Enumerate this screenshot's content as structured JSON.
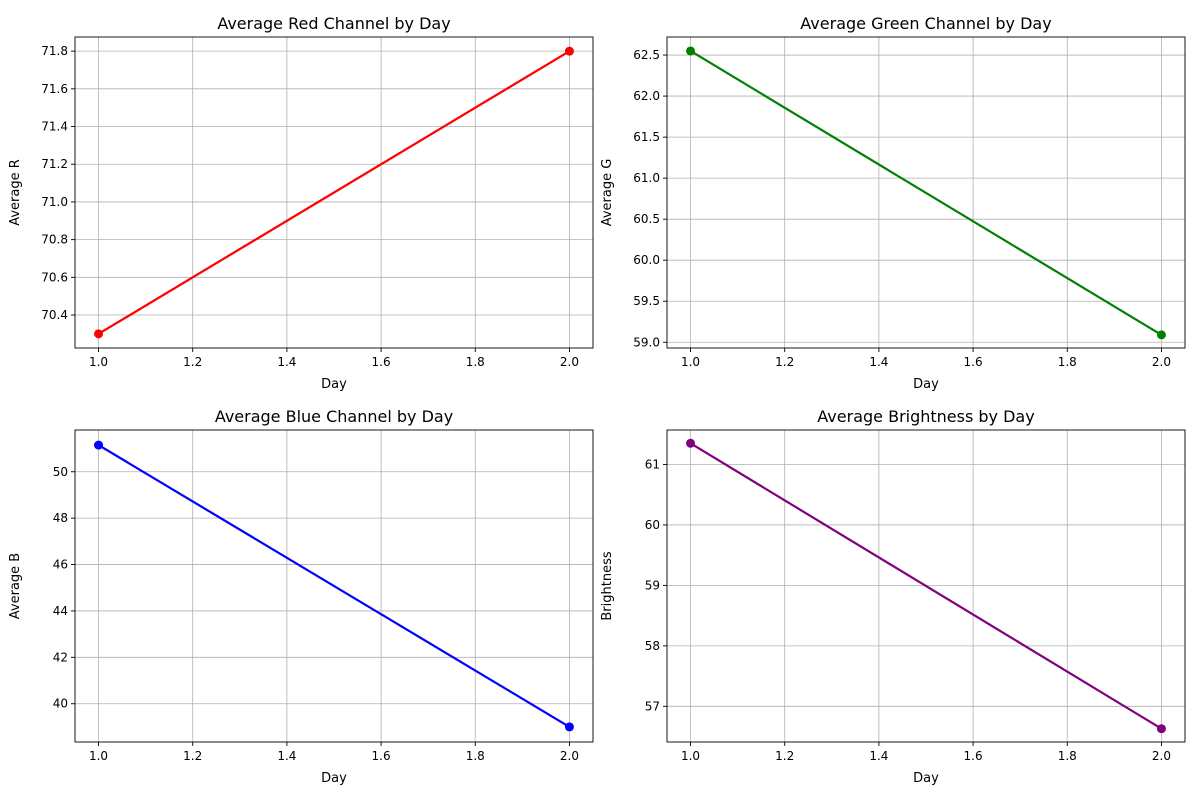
{
  "chart_data": [
    {
      "type": "line",
      "title": "Average Red Channel by Day",
      "xlabel": "Day",
      "ylabel": "Average R",
      "xlim": [
        0.95,
        2.05
      ],
      "ylim": [
        70.225,
        71.875
      ],
      "xticks": [
        1.0,
        1.2,
        1.4,
        1.6,
        1.8,
        2.0
      ],
      "xtick_labels": [
        "1.0",
        "1.2",
        "1.4",
        "1.6",
        "1.8",
        "2.0"
      ],
      "yticks": [
        70.4,
        70.6,
        70.8,
        71.0,
        71.2,
        71.4,
        71.6,
        71.8
      ],
      "ytick_labels": [
        "70.4",
        "70.6",
        "70.8",
        "71.0",
        "71.2",
        "71.4",
        "71.6",
        "71.8"
      ],
      "grid": true,
      "series": [
        {
          "color": "#ff0000",
          "x": [
            1.0,
            2.0
          ],
          "y": [
            70.3,
            71.8
          ]
        }
      ]
    },
    {
      "type": "line",
      "title": "Average Green Channel by Day",
      "xlabel": "Day",
      "ylabel": "Average G",
      "xlim": [
        0.95,
        2.05
      ],
      "ylim": [
        58.93,
        62.72
      ],
      "xticks": [
        1.0,
        1.2,
        1.4,
        1.6,
        1.8,
        2.0
      ],
      "xtick_labels": [
        "1.0",
        "1.2",
        "1.4",
        "1.6",
        "1.8",
        "2.0"
      ],
      "yticks": [
        59.0,
        59.5,
        60.0,
        60.5,
        61.0,
        61.5,
        62.0,
        62.5
      ],
      "ytick_labels": [
        "59.0",
        "59.5",
        "60.0",
        "60.5",
        "61.0",
        "61.5",
        "62.0",
        "62.5"
      ],
      "grid": true,
      "series": [
        {
          "color": "#008000",
          "x": [
            1.0,
            2.0
          ],
          "y": [
            62.55,
            59.09
          ]
        }
      ]
    },
    {
      "type": "line",
      "title": "Average Blue Channel by Day",
      "xlabel": "Day",
      "ylabel": "Average B",
      "xlim": [
        0.95,
        2.05
      ],
      "ylim": [
        38.35,
        51.8
      ],
      "xticks": [
        1.0,
        1.2,
        1.4,
        1.6,
        1.8,
        2.0
      ],
      "xtick_labels": [
        "1.0",
        "1.2",
        "1.4",
        "1.6",
        "1.8",
        "2.0"
      ],
      "yticks": [
        40,
        42,
        44,
        46,
        48,
        50
      ],
      "ytick_labels": [
        "40",
        "42",
        "44",
        "46",
        "48",
        "50"
      ],
      "grid": true,
      "series": [
        {
          "color": "#0000ff",
          "x": [
            1.0,
            2.0
          ],
          "y": [
            51.15,
            39.0
          ]
        }
      ]
    },
    {
      "type": "line",
      "title": "Average Brightness by Day",
      "xlabel": "Day",
      "ylabel": "Brightness",
      "xlim": [
        0.95,
        2.05
      ],
      "ylim": [
        56.41,
        61.57
      ],
      "xticks": [
        1.0,
        1.2,
        1.4,
        1.6,
        1.8,
        2.0
      ],
      "xtick_labels": [
        "1.0",
        "1.2",
        "1.4",
        "1.6",
        "1.8",
        "2.0"
      ],
      "yticks": [
        57,
        58,
        59,
        60,
        61
      ],
      "ytick_labels": [
        "57",
        "58",
        "59",
        "60",
        "61"
      ],
      "grid": true,
      "series": [
        {
          "color": "#800080",
          "x": [
            1.0,
            2.0
          ],
          "y": [
            61.35,
            56.63
          ]
        }
      ]
    }
  ]
}
